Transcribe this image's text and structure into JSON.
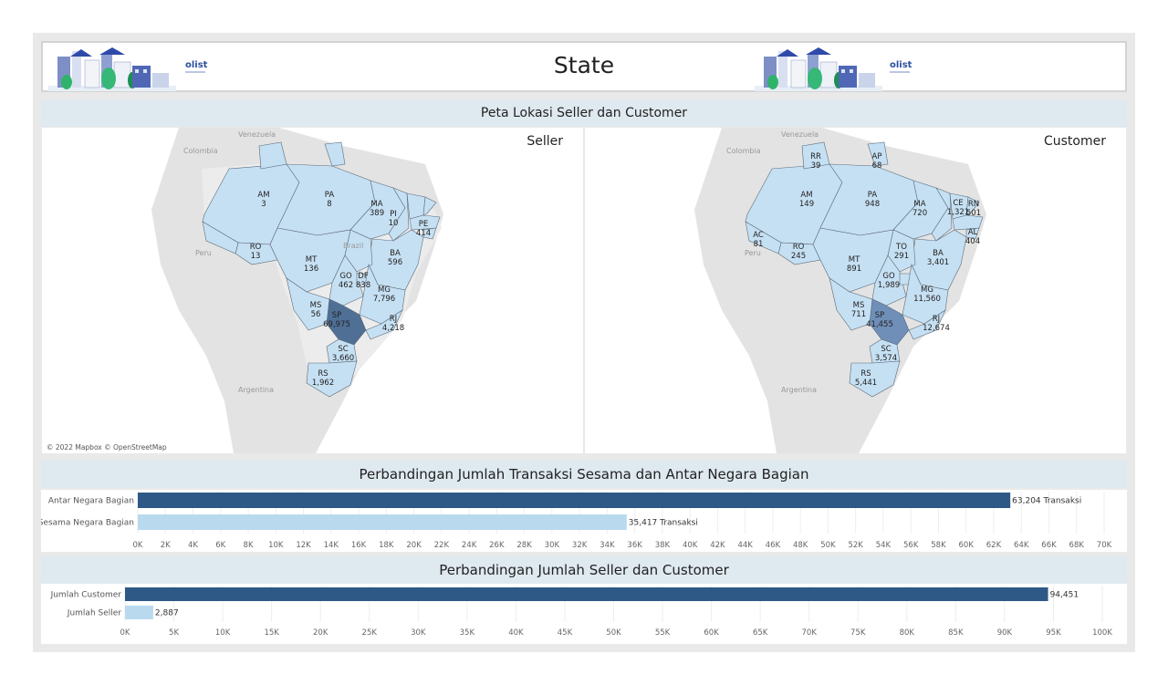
{
  "header": {
    "title": "State",
    "logo_text": "olist"
  },
  "sections": {
    "maps": "Peta Lokasi Seller dan Customer",
    "transactions": "Perbandingan Jumlah Transaksi Sesama dan Antar Negara Bagian",
    "counts": "Perbandingan Jumlah Seller dan Customer"
  },
  "maps": {
    "attribution": "© 2022 Mapbox © OpenStreetMap",
    "place_names": [
      "Venezuela",
      "Colombia",
      "Peru",
      "Brazil",
      "Argentina"
    ],
    "seller": {
      "title": "Seller",
      "states": [
        {
          "code": "AM",
          "value": "3"
        },
        {
          "code": "PA",
          "value": "8"
        },
        {
          "code": "MA",
          "value": "389"
        },
        {
          "code": "PI",
          "value": "10"
        },
        {
          "code": "PE",
          "value": "414"
        },
        {
          "code": "RO",
          "value": "13"
        },
        {
          "code": "MT",
          "value": "136"
        },
        {
          "code": "BA",
          "value": "596"
        },
        {
          "code": "GO",
          "value": "462"
        },
        {
          "code": "DF",
          "value": "838"
        },
        {
          "code": "MG",
          "value": "7,796"
        },
        {
          "code": "MS",
          "value": "56"
        },
        {
          "code": "SP",
          "value": "69,975"
        },
        {
          "code": "RJ",
          "value": "4,218"
        },
        {
          "code": "SC",
          "value": "3,660"
        },
        {
          "code": "RS",
          "value": "1,962"
        }
      ]
    },
    "customer": {
      "title": "Customer",
      "states": [
        {
          "code": "RR",
          "value": "39"
        },
        {
          "code": "AP",
          "value": "68"
        },
        {
          "code": "AM",
          "value": "149"
        },
        {
          "code": "PA",
          "value": "948"
        },
        {
          "code": "MA",
          "value": "720"
        },
        {
          "code": "CE",
          "value": "1,321"
        },
        {
          "code": "RN",
          "value": "501"
        },
        {
          "code": "AC",
          "value": "81"
        },
        {
          "code": "AL",
          "value": "404"
        },
        {
          "code": "RO",
          "value": "245"
        },
        {
          "code": "TO",
          "value": "291"
        },
        {
          "code": "MT",
          "value": "891"
        },
        {
          "code": "BA",
          "value": "3,401"
        },
        {
          "code": "GO",
          "value": "1,989"
        },
        {
          "code": "MG",
          "value": "11,560"
        },
        {
          "code": "MS",
          "value": "711"
        },
        {
          "code": "SP",
          "value": "41,455"
        },
        {
          "code": "RJ",
          "value": "12,674"
        },
        {
          "code": "SC",
          "value": "3,574"
        },
        {
          "code": "RS",
          "value": "5,441"
        }
      ]
    }
  },
  "colors": {
    "dark_bar": "#2e5986",
    "light_bar": "#b9d9ef",
    "map_fill": "#c6e0f3",
    "map_sp_seller": "#4f6f95",
    "map_sp_customer": "#6f8fb8"
  },
  "chart_data": [
    {
      "type": "bar",
      "orientation": "horizontal",
      "title": "Perbandingan Jumlah Transaksi Sesama dan Antar Negara Bagian",
      "categories": [
        "Antar Negara Bagian",
        "Sesama Negara Bagian"
      ],
      "values": [
        63204,
        35417
      ],
      "labels": [
        "63,204 Transaksi",
        "35,417 Transaksi"
      ],
      "colors": [
        "#2e5986",
        "#b9d9ef"
      ],
      "xlim": [
        0,
        70000
      ],
      "ticks": [
        0,
        2000,
        4000,
        6000,
        8000,
        10000,
        12000,
        14000,
        16000,
        18000,
        20000,
        22000,
        24000,
        26000,
        28000,
        30000,
        32000,
        34000,
        36000,
        38000,
        40000,
        42000,
        44000,
        46000,
        48000,
        50000,
        52000,
        54000,
        56000,
        58000,
        60000,
        62000,
        64000,
        66000,
        68000,
        70000
      ],
      "tick_labels": [
        "0K",
        "2K",
        "4K",
        "6K",
        "8K",
        "10K",
        "12K",
        "14K",
        "16K",
        "18K",
        "20K",
        "22K",
        "24K",
        "26K",
        "28K",
        "30K",
        "32K",
        "34K",
        "36K",
        "38K",
        "40K",
        "42K",
        "44K",
        "46K",
        "48K",
        "50K",
        "52K",
        "54K",
        "56K",
        "58K",
        "60K",
        "62K",
        "64K",
        "66K",
        "68K",
        "70K"
      ],
      "grid": true
    },
    {
      "type": "bar",
      "orientation": "horizontal",
      "title": "Perbandingan Jumlah Seller dan Customer",
      "categories": [
        "Jumlah Customer",
        "Jumlah Seller"
      ],
      "values": [
        94451,
        2887
      ],
      "labels": [
        "94,451",
        "2,887"
      ],
      "colors": [
        "#2e5986",
        "#b9d9ef"
      ],
      "xlim": [
        0,
        100000
      ],
      "ticks": [
        0,
        5000,
        10000,
        15000,
        20000,
        25000,
        30000,
        35000,
        40000,
        45000,
        50000,
        55000,
        60000,
        65000,
        70000,
        75000,
        80000,
        85000,
        90000,
        95000,
        100000
      ],
      "tick_labels": [
        "0K",
        "5K",
        "10K",
        "15K",
        "20K",
        "25K",
        "30K",
        "35K",
        "40K",
        "45K",
        "50K",
        "55K",
        "60K",
        "65K",
        "70K",
        "75K",
        "80K",
        "85K",
        "90K",
        "95K",
        "100K"
      ],
      "grid": true
    }
  ]
}
